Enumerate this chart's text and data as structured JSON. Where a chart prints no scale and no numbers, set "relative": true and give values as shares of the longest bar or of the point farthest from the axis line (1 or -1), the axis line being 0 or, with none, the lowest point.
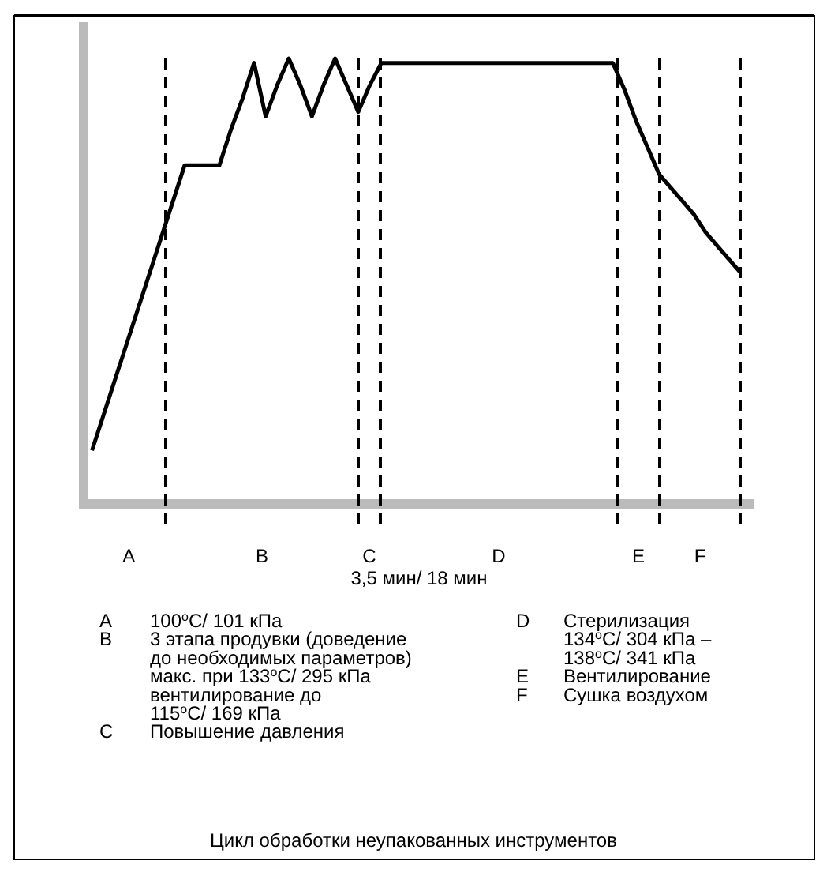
{
  "chart_data": {
    "type": "line",
    "relative": true,
    "title": "Цикл обработки неупакованных инструментов",
    "marker": "none",
    "grid": "x",
    "line_style": "solid",
    "categories": [
      null,
      null,
      null,
      null,
      null,
      null,
      null,
      null,
      null,
      null,
      null,
      null,
      null,
      null,
      null,
      null,
      null,
      null,
      null,
      null,
      null,
      null,
      null,
      null,
      null,
      null,
      null,
      null,
      null,
      null,
      null,
      null,
      null,
      null,
      null,
      null,
      null,
      null,
      null,
      null,
      null,
      null,
      null,
      null,
      null,
      null,
      null,
      null,
      null,
      null,
      null,
      null,
      null,
      null,
      null,
      null,
      null
    ],
    "series": [
      {
        "color": "#000000",
        "values": [
          0.12,
          0.2,
          0.28,
          0.36,
          0.44,
          0.52,
          0.6,
          0.68,
          0.76,
          0.76,
          0.76,
          0.76,
          0.84,
          0.91,
          0.99,
          0.87,
          0.94,
          1,
          0.94,
          0.87,
          0.94,
          1,
          0.94,
          0.88,
          0.94,
          0.99,
          0.99,
          0.99,
          0.99,
          0.99,
          0.99,
          0.99,
          0.99,
          0.99,
          0.99,
          0.99,
          0.99,
          0.99,
          0.99,
          0.99,
          0.99,
          0.99,
          0.99,
          0.99,
          0.99,
          0.99,
          0.93,
          0.86,
          0.8,
          0.74,
          0.71,
          0.68,
          0.65,
          0.61,
          0.58,
          0.55,
          0.52
        ]
      }
    ],
    "annotations": [
      "A",
      "B",
      "C",
      "D",
      "E",
      "F",
      "3,5 мин/ 18 мин",
      "A\t100$^{o}$C/ 101 кПа",
      "B\t3 этапа продувки (доведение\nдо необходимых параметров)\nмакс. при 133$^{o}$C/ 295 кПа\nвентилирование до\n115$^{o}$C/ 169 кПа",
      "C\tПовышение давления",
      "D\tСтерилизация\n134$^{o}$C/ 304 кПа –\n138$^{o}$C/ 341 кПа",
      "E\tВентилирование",
      "F\tСушка воздухом"
    ]
  }
}
